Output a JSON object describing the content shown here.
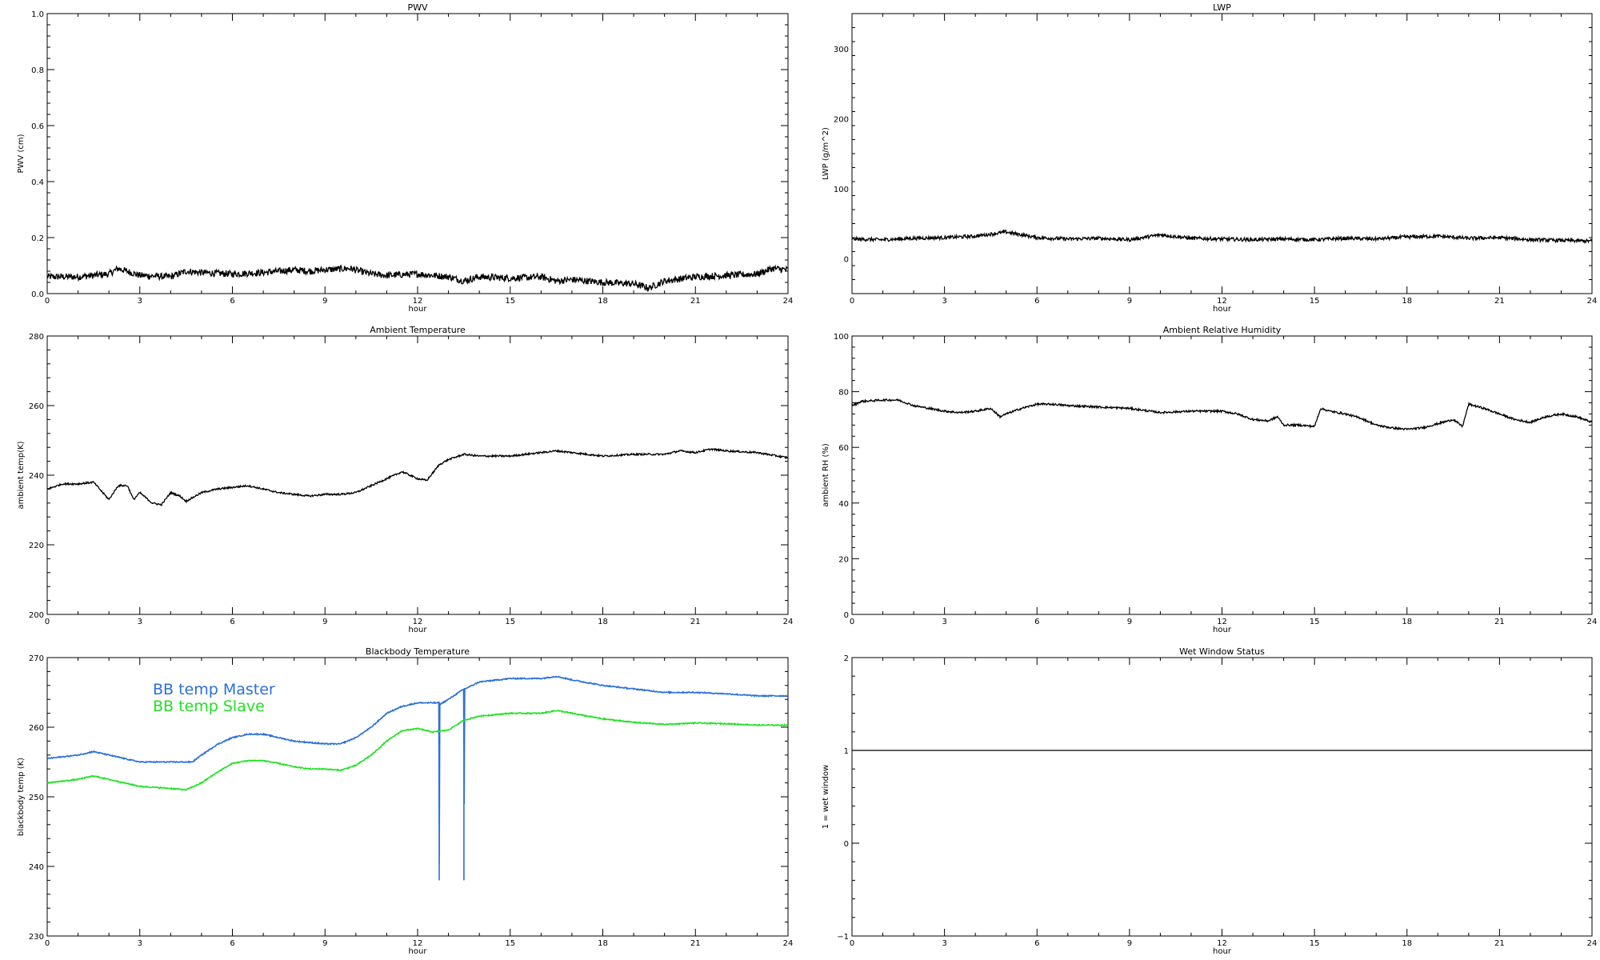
{
  "chart_data": [
    {
      "type": "line",
      "title": "PWV",
      "xlabel": "hour",
      "ylabel": "PWV (cm)",
      "xlim": [
        0,
        24
      ],
      "ylim": [
        0,
        1
      ],
      "xticks": [
        0,
        3,
        6,
        9,
        12,
        15,
        18,
        21,
        24
      ],
      "xtick_labels": [
        "0",
        "3",
        "6",
        "9",
        "12",
        "15",
        "18",
        "21",
        "24"
      ],
      "yticks": [
        0,
        0.2,
        0.4,
        0.6,
        0.8,
        1.0
      ],
      "ytick_labels": [
        "0.0",
        "0.2",
        "0.4",
        "0.6",
        "0.8",
        "1.0"
      ],
      "series": [
        {
          "color": "#000000",
          "noise": 0.012,
          "x": [
            0,
            1,
            2,
            2.3,
            3,
            4,
            4.5,
            5,
            6,
            7,
            8,
            8.5,
            9,
            9.8,
            10.5,
            11,
            12,
            13,
            13.5,
            14,
            15,
            16,
            16.5,
            17,
            18,
            19,
            19.5,
            20,
            21,
            22,
            23,
            23.5,
            24
          ],
          "y": [
            0.06,
            0.06,
            0.07,
            0.09,
            0.065,
            0.06,
            0.08,
            0.075,
            0.07,
            0.075,
            0.085,
            0.08,
            0.085,
            0.09,
            0.07,
            0.065,
            0.07,
            0.06,
            0.045,
            0.06,
            0.055,
            0.06,
            0.045,
            0.05,
            0.04,
            0.035,
            0.02,
            0.045,
            0.06,
            0.065,
            0.07,
            0.09,
            0.085
          ]
        }
      ]
    },
    {
      "type": "line",
      "title": "LWP",
      "xlabel": "hour",
      "ylabel": "LWP (g/m^2)",
      "xlim": [
        0,
        24
      ],
      "ylim": [
        -50,
        350
      ],
      "xticks": [
        0,
        3,
        6,
        9,
        12,
        15,
        18,
        21,
        24
      ],
      "xtick_labels": [
        "0",
        "3",
        "6",
        "9",
        "12",
        "15",
        "18",
        "21",
        "24"
      ],
      "yticks": [
        0,
        100,
        200,
        300
      ],
      "ytick_labels": [
        "0",
        "100",
        "200",
        "300"
      ],
      "series": [
        {
          "color": "#000000",
          "noise": 2.5,
          "x": [
            0,
            1,
            2,
            3,
            4,
            5,
            6,
            7,
            8,
            9,
            10,
            11,
            12,
            13,
            14,
            15,
            16,
            17,
            18,
            19,
            20,
            21,
            22,
            23,
            24
          ],
          "y": [
            28,
            27,
            29,
            30,
            32,
            38,
            30,
            28,
            29,
            27,
            34,
            29,
            28,
            27,
            28,
            27,
            29,
            28,
            31,
            32,
            29,
            30,
            27,
            26,
            25
          ]
        }
      ]
    },
    {
      "type": "line",
      "title": "Ambient Temperature",
      "xlabel": "hour",
      "ylabel": "ambient temp(K)",
      "xlim": [
        0,
        24
      ],
      "ylim": [
        200,
        280
      ],
      "xticks": [
        0,
        3,
        6,
        9,
        12,
        15,
        18,
        21,
        24
      ],
      "xtick_labels": [
        "0",
        "3",
        "6",
        "9",
        "12",
        "15",
        "18",
        "21",
        "24"
      ],
      "yticks": [
        200,
        220,
        240,
        260,
        280
      ],
      "ytick_labels": [
        "200",
        "220",
        "240",
        "260",
        "280"
      ],
      "series": [
        {
          "color": "#000000",
          "noise": 0.25,
          "x": [
            0,
            0.5,
            1,
            1.5,
            1.7,
            2.0,
            2.3,
            2.6,
            2.8,
            3.0,
            3.4,
            3.7,
            4.0,
            4.3,
            4.5,
            5,
            5.5,
            6,
            6.5,
            7,
            7.5,
            8,
            8.5,
            9,
            9.5,
            10,
            10.5,
            11,
            11.5,
            12,
            12.3,
            12.7,
            13.0,
            13.5,
            14,
            15,
            16,
            16.5,
            17,
            18,
            19,
            20,
            20.5,
            21,
            21.5,
            22,
            23,
            24
          ],
          "y": [
            236,
            237.5,
            237.5,
            238,
            236,
            233,
            237,
            237,
            233,
            235,
            232,
            231.5,
            235,
            234,
            232.5,
            235,
            236,
            236.5,
            237,
            236,
            235,
            234.5,
            234,
            234.5,
            234.5,
            235,
            237,
            239,
            241,
            239,
            238.5,
            243,
            244.5,
            246,
            245.5,
            245.5,
            246.5,
            247,
            246.5,
            245.5,
            246,
            246,
            247,
            246.5,
            247.5,
            247,
            246.5,
            245
          ]
        }
      ]
    },
    {
      "type": "line",
      "title": "Ambient Relative Humidity",
      "xlabel": "hour",
      "ylabel": "ambient RH (%)",
      "xlim": [
        0,
        24
      ],
      "ylim": [
        0,
        100
      ],
      "xticks": [
        0,
        3,
        6,
        9,
        12,
        15,
        18,
        21,
        24
      ],
      "xtick_labels": [
        "0",
        "3",
        "6",
        "9",
        "12",
        "15",
        "18",
        "21",
        "24"
      ],
      "yticks": [
        0,
        20,
        40,
        60,
        80,
        100
      ],
      "ytick_labels": [
        "0",
        "20",
        "40",
        "60",
        "80",
        "100"
      ],
      "series": [
        {
          "color": "#000000",
          "noise": 0.35,
          "x": [
            0,
            0.3,
            1,
            1.5,
            2,
            2.5,
            3,
            3.5,
            4,
            4.5,
            4.8,
            5,
            5.5,
            6,
            6.5,
            7,
            8,
            9,
            10,
            11,
            12,
            12.5,
            13,
            13.5,
            13.8,
            14,
            14.5,
            15,
            15.2,
            15.5,
            16,
            16.5,
            17,
            17.5,
            18,
            18.5,
            19,
            19.5,
            19.8,
            20,
            20.5,
            21,
            21.5,
            22,
            22.5,
            23,
            23.5,
            24
          ],
          "y": [
            75,
            76.5,
            77,
            77,
            75,
            74,
            73,
            72.5,
            73,
            74,
            71,
            72,
            74,
            75.5,
            75.5,
            75,
            74.5,
            74,
            72.5,
            73,
            73,
            72,
            70,
            69.5,
            71,
            68,
            68,
            67.5,
            74,
            73,
            72,
            70.5,
            68,
            67,
            66.5,
            67,
            68.5,
            70,
            67.5,
            75.5,
            74,
            72,
            70,
            69,
            71,
            72,
            71,
            69
          ]
        }
      ]
    },
    {
      "type": "line",
      "title": "Blackbody Temperature",
      "xlabel": "hour",
      "ylabel": "blackbody temp (K)",
      "xlim": [
        0,
        24
      ],
      "ylim": [
        230,
        270
      ],
      "xticks": [
        0,
        3,
        6,
        9,
        12,
        15,
        18,
        21,
        24
      ],
      "xtick_labels": [
        "0",
        "3",
        "6",
        "9",
        "12",
        "15",
        "18",
        "21",
        "24"
      ],
      "yticks": [
        230,
        240,
        250,
        260,
        270
      ],
      "ytick_labels": [
        "230",
        "240",
        "250",
        "260",
        "270"
      ],
      "legend": [
        "BB temp Master",
        "BB temp Slave"
      ],
      "legend_position": "top-left",
      "series": [
        {
          "name": "BB temp Master",
          "color": "#2a6fdb",
          "noise": 0.08,
          "x": [
            0,
            1,
            1.5,
            2,
            3,
            4,
            4.7,
            5,
            5.5,
            6,
            6.5,
            7,
            7.5,
            8,
            8.5,
            9,
            9.5,
            10,
            10.5,
            11,
            11.5,
            12,
            12.7,
            12.701,
            12.72,
            12.73,
            13.0,
            13.5,
            13.501,
            13.52,
            13.53,
            14,
            15,
            16,
            16.5,
            17,
            18,
            19,
            20,
            21,
            22,
            23,
            24
          ],
          "y": [
            255.5,
            256,
            256.5,
            256,
            255,
            255,
            255,
            256,
            257.5,
            258.5,
            259,
            259,
            258.5,
            258,
            257.8,
            257.6,
            257.6,
            258.5,
            260,
            262,
            263,
            263.5,
            263.5,
            238,
            263.3,
            263.3,
            264,
            265.5,
            238,
            265.5,
            265.5,
            266.5,
            267,
            267,
            267.3,
            266.8,
            266,
            265.5,
            265,
            265,
            264.8,
            264.5,
            264.5
          ]
        },
        {
          "name": "BB temp Slave",
          "color": "#22e022",
          "noise": 0.08,
          "x": [
            0,
            1,
            1.5,
            2,
            3,
            4,
            4.5,
            5,
            5.5,
            6,
            6.5,
            7,
            7.5,
            8,
            8.5,
            9,
            9.5,
            10,
            10.5,
            11,
            11.5,
            12,
            12.5,
            13,
            13.5,
            14,
            15,
            16,
            16.5,
            17,
            18,
            19,
            20,
            21,
            22,
            23,
            24
          ],
          "y": [
            252,
            252.5,
            253,
            252.5,
            251.5,
            251.2,
            251,
            252,
            253.5,
            254.8,
            255.2,
            255.2,
            254.8,
            254.3,
            254,
            254,
            253.8,
            254.5,
            256,
            258,
            259.5,
            259.8,
            259.3,
            259.6,
            261,
            261.6,
            262,
            262,
            262.4,
            262,
            261.2,
            260.7,
            260.4,
            260.6,
            260.5,
            260.3,
            260.3
          ]
        }
      ]
    },
    {
      "type": "line",
      "title": "Wet Window Status",
      "xlabel": "hour",
      "ylabel": "1 = wet window",
      "xlim": [
        0,
        24
      ],
      "ylim": [
        -1,
        2
      ],
      "xticks": [
        0,
        3,
        6,
        9,
        12,
        15,
        18,
        21,
        24
      ],
      "xtick_labels": [
        "0",
        "3",
        "6",
        "9",
        "12",
        "15",
        "18",
        "21",
        "24"
      ],
      "yticks": [
        -1,
        0,
        1,
        2
      ],
      "ytick_labels": [
        "−1",
        "0",
        "1",
        "2"
      ],
      "series": [
        {
          "color": "#000000",
          "noise": 0,
          "x": [
            0,
            24
          ],
          "y": [
            1,
            1
          ]
        }
      ]
    }
  ]
}
